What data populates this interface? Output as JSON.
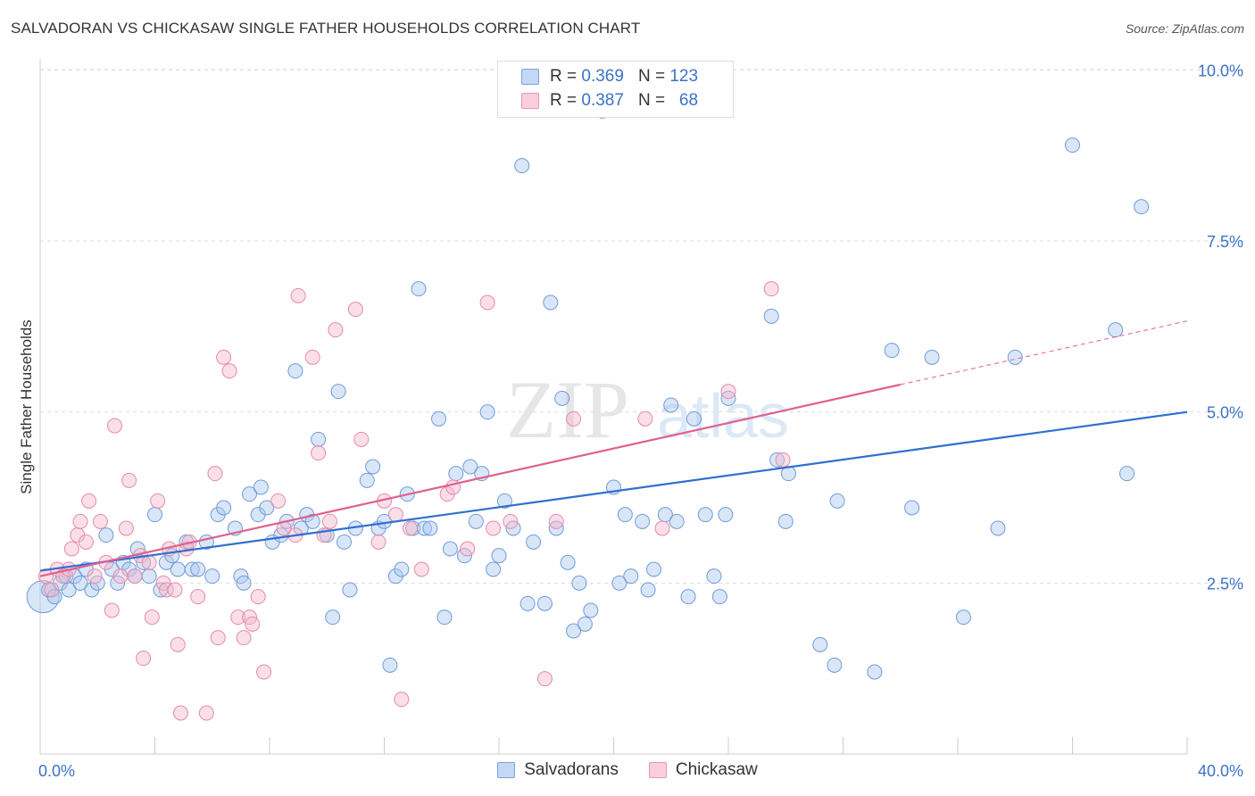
{
  "title": "SALVADORAN VS CHICKASAW SINGLE FATHER HOUSEHOLDS CORRELATION CHART",
  "source": "Source: ZipAtlas.com",
  "watermark": {
    "zip": "ZIP",
    "atlas": "atlas"
  },
  "colors": {
    "blue": "#3b72c6",
    "blue_fill": "#aac7f0",
    "blue_line": "#2f6fd0",
    "pink_fill": "#f5b8cc",
    "pink_line": "#e0608f",
    "axis_text": "#3b72c6",
    "grid": "#dddddd"
  },
  "legend": {
    "rows": [
      {
        "r_label": "R =",
        "r_value": "0.369",
        "n_label": "N =",
        "n_value": "123"
      },
      {
        "r_label": "R =",
        "r_value": "0.387",
        "n_label": "N =",
        "n_value": "68"
      }
    ]
  },
  "bottom_legend": {
    "series1": "Salvadorans",
    "series2": "Chickasaw"
  },
  "chart_data": {
    "type": "scatter",
    "title": "SALVADORAN VS CHICKASAW SINGLE FATHER HOUSEHOLDS CORRELATION CHART",
    "xlabel": "",
    "ylabel": "Single Father Households",
    "xlim": [
      0,
      40
    ],
    "ylim": [
      0,
      10.5
    ],
    "x_tick_labels": [
      "0.0%",
      "40.0%"
    ],
    "y_tick_values": [
      2.5,
      5.0,
      7.5,
      10.0
    ],
    "y_tick_labels": [
      "2.5%",
      "5.0%",
      "7.5%",
      "10.0%"
    ],
    "grid": true,
    "legend_position": "top-center",
    "series": [
      {
        "name": "Salvadorans",
        "color": "#aac7f0",
        "r": 0.369,
        "n": 123,
        "trend": {
          "x": [
            0,
            40
          ],
          "y": [
            2.68,
            5.0
          ]
        },
        "points": [
          [
            0.1,
            2.3
          ],
          [
            0.3,
            2.4
          ],
          [
            0.5,
            2.3
          ],
          [
            0.7,
            2.5
          ],
          [
            0.9,
            2.6
          ],
          [
            1.0,
            2.4
          ],
          [
            1.2,
            2.6
          ],
          [
            1.4,
            2.5
          ],
          [
            1.6,
            2.7
          ],
          [
            1.8,
            2.4
          ],
          [
            2.0,
            2.5
          ],
          [
            2.3,
            3.2
          ],
          [
            2.5,
            2.7
          ],
          [
            2.7,
            2.5
          ],
          [
            2.9,
            2.8
          ],
          [
            3.1,
            2.7
          ],
          [
            3.3,
            2.6
          ],
          [
            3.4,
            3.0
          ],
          [
            3.6,
            2.8
          ],
          [
            3.8,
            2.6
          ],
          [
            4.0,
            3.5
          ],
          [
            4.2,
            2.4
          ],
          [
            4.4,
            2.8
          ],
          [
            4.6,
            2.9
          ],
          [
            4.8,
            2.7
          ],
          [
            5.1,
            3.1
          ],
          [
            5.3,
            2.7
          ],
          [
            5.5,
            2.7
          ],
          [
            5.8,
            3.1
          ],
          [
            6.0,
            2.6
          ],
          [
            6.2,
            3.5
          ],
          [
            6.4,
            3.6
          ],
          [
            6.8,
            3.3
          ],
          [
            7.0,
            2.6
          ],
          [
            7.1,
            2.5
          ],
          [
            7.3,
            3.8
          ],
          [
            7.6,
            3.5
          ],
          [
            7.7,
            3.9
          ],
          [
            7.9,
            3.6
          ],
          [
            8.1,
            3.1
          ],
          [
            8.4,
            3.2
          ],
          [
            8.6,
            3.4
          ],
          [
            8.9,
            5.6
          ],
          [
            9.1,
            3.3
          ],
          [
            9.3,
            3.5
          ],
          [
            9.5,
            3.4
          ],
          [
            9.7,
            4.6
          ],
          [
            10.0,
            3.2
          ],
          [
            10.2,
            2.0
          ],
          [
            10.4,
            5.3
          ],
          [
            10.6,
            3.1
          ],
          [
            10.8,
            2.4
          ],
          [
            11.0,
            3.3
          ],
          [
            11.4,
            4.0
          ],
          [
            11.6,
            4.2
          ],
          [
            11.8,
            3.3
          ],
          [
            12.0,
            3.4
          ],
          [
            12.2,
            1.3
          ],
          [
            12.4,
            2.6
          ],
          [
            12.6,
            2.7
          ],
          [
            12.8,
            3.8
          ],
          [
            13.0,
            3.3
          ],
          [
            13.2,
            6.8
          ],
          [
            13.4,
            3.3
          ],
          [
            13.6,
            3.3
          ],
          [
            13.9,
            4.9
          ],
          [
            14.1,
            2.0
          ],
          [
            14.3,
            3.0
          ],
          [
            14.5,
            4.1
          ],
          [
            14.8,
            2.9
          ],
          [
            15.0,
            4.2
          ],
          [
            15.2,
            3.4
          ],
          [
            15.4,
            4.1
          ],
          [
            15.6,
            5.0
          ],
          [
            15.8,
            2.7
          ],
          [
            16.0,
            2.9
          ],
          [
            16.2,
            3.7
          ],
          [
            16.5,
            3.3
          ],
          [
            16.8,
            8.6
          ],
          [
            17.0,
            2.2
          ],
          [
            17.2,
            3.1
          ],
          [
            17.6,
            2.2
          ],
          [
            17.8,
            6.6
          ],
          [
            18.0,
            3.3
          ],
          [
            18.2,
            5.2
          ],
          [
            18.4,
            2.8
          ],
          [
            18.6,
            1.8
          ],
          [
            18.8,
            2.5
          ],
          [
            19.0,
            1.9
          ],
          [
            19.2,
            2.1
          ],
          [
            19.6,
            9.4
          ],
          [
            20.0,
            3.9
          ],
          [
            20.2,
            2.5
          ],
          [
            20.4,
            3.5
          ],
          [
            20.6,
            2.6
          ],
          [
            21.0,
            3.4
          ],
          [
            21.2,
            2.4
          ],
          [
            21.4,
            2.7
          ],
          [
            21.8,
            3.5
          ],
          [
            22.0,
            5.1
          ],
          [
            22.2,
            3.4
          ],
          [
            22.6,
            2.3
          ],
          [
            22.8,
            4.9
          ],
          [
            23.2,
            3.5
          ],
          [
            23.5,
            2.6
          ],
          [
            23.7,
            2.3
          ],
          [
            23.9,
            3.5
          ],
          [
            24.0,
            5.2
          ],
          [
            25.5,
            6.4
          ],
          [
            25.7,
            4.3
          ],
          [
            26.0,
            3.4
          ],
          [
            26.1,
            4.1
          ],
          [
            27.2,
            1.6
          ],
          [
            27.7,
            1.3
          ],
          [
            27.8,
            3.7
          ],
          [
            29.1,
            1.2
          ],
          [
            29.7,
            5.9
          ],
          [
            30.4,
            3.6
          ],
          [
            31.1,
            5.8
          ],
          [
            32.2,
            2.0
          ],
          [
            33.4,
            3.3
          ],
          [
            34.0,
            5.8
          ],
          [
            36.0,
            8.9
          ],
          [
            37.5,
            6.2
          ],
          [
            37.9,
            4.1
          ],
          [
            38.4,
            8.0
          ]
        ]
      },
      {
        "name": "Chickasaw",
        "color": "#f5b8cc",
        "r": 0.387,
        "n": 68,
        "trend": {
          "x": [
            0,
            30
          ],
          "y": [
            2.6,
            5.4
          ]
        },
        "trend_dashed": {
          "x": [
            30,
            40
          ],
          "y": [
            5.4,
            6.33
          ]
        },
        "points": [
          [
            0.2,
            2.6
          ],
          [
            0.4,
            2.4
          ],
          [
            0.6,
            2.7
          ],
          [
            0.8,
            2.6
          ],
          [
            1.0,
            2.7
          ],
          [
            1.1,
            3.0
          ],
          [
            1.3,
            3.2
          ],
          [
            1.4,
            3.4
          ],
          [
            1.6,
            3.1
          ],
          [
            1.7,
            3.7
          ],
          [
            1.9,
            2.6
          ],
          [
            2.1,
            3.4
          ],
          [
            2.3,
            2.8
          ],
          [
            2.5,
            2.1
          ],
          [
            2.6,
            4.8
          ],
          [
            2.8,
            2.6
          ],
          [
            3.0,
            3.3
          ],
          [
            3.1,
            4.0
          ],
          [
            3.3,
            2.6
          ],
          [
            3.5,
            2.9
          ],
          [
            3.6,
            1.4
          ],
          [
            3.8,
            2.8
          ],
          [
            3.9,
            2.0
          ],
          [
            4.1,
            3.7
          ],
          [
            4.3,
            2.5
          ],
          [
            4.4,
            2.4
          ],
          [
            4.5,
            3.0
          ],
          [
            4.7,
            2.4
          ],
          [
            4.8,
            1.6
          ],
          [
            4.9,
            0.6
          ],
          [
            5.1,
            3.0
          ],
          [
            5.2,
            3.1
          ],
          [
            5.5,
            2.3
          ],
          [
            5.8,
            0.6
          ],
          [
            6.1,
            4.1
          ],
          [
            6.2,
            1.7
          ],
          [
            6.4,
            5.8
          ],
          [
            6.6,
            5.6
          ],
          [
            6.9,
            2.0
          ],
          [
            7.1,
            1.7
          ],
          [
            7.3,
            2.0
          ],
          [
            7.4,
            1.9
          ],
          [
            7.6,
            2.3
          ],
          [
            7.8,
            1.2
          ],
          [
            8.3,
            3.7
          ],
          [
            8.5,
            3.3
          ],
          [
            8.9,
            3.2
          ],
          [
            9.0,
            6.7
          ],
          [
            9.5,
            5.8
          ],
          [
            9.7,
            4.4
          ],
          [
            9.9,
            3.2
          ],
          [
            10.1,
            3.4
          ],
          [
            10.3,
            6.2
          ],
          [
            11.0,
            6.5
          ],
          [
            11.2,
            4.6
          ],
          [
            11.8,
            3.1
          ],
          [
            12.0,
            3.7
          ],
          [
            12.4,
            3.5
          ],
          [
            12.6,
            0.8
          ],
          [
            12.9,
            3.3
          ],
          [
            13.3,
            2.7
          ],
          [
            14.2,
            3.8
          ],
          [
            14.4,
            3.9
          ],
          [
            14.9,
            3.0
          ],
          [
            15.6,
            6.6
          ],
          [
            15.8,
            3.3
          ],
          [
            16.4,
            3.4
          ],
          [
            17.6,
            1.1
          ],
          [
            18.0,
            3.4
          ],
          [
            18.6,
            4.9
          ],
          [
            21.1,
            4.9
          ],
          [
            21.7,
            3.3
          ],
          [
            24.0,
            5.3
          ],
          [
            25.5,
            6.8
          ],
          [
            25.9,
            4.3
          ]
        ]
      }
    ]
  }
}
